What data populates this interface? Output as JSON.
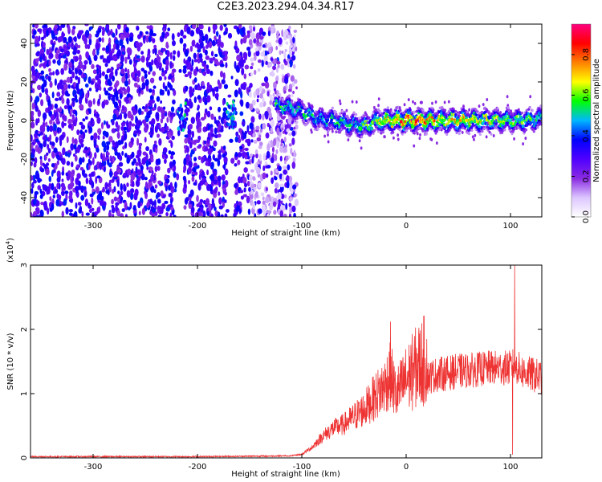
{
  "title": "C2E3.2023.294.04.34.R17",
  "chart_data": [
    {
      "type": "heatmap",
      "xlabel": "Height of straight line (km)",
      "ylabel": "Frequency (Hz)",
      "xlim": [
        -360,
        130
      ],
      "ylim": [
        -50,
        50
      ],
      "xticks": [
        -300,
        -200,
        -100,
        0,
        100
      ],
      "yticks": [
        -40,
        -20,
        0,
        20,
        40
      ],
      "colorbar": {
        "label": "Normalized spectral amplitude",
        "range": [
          0.0,
          0.95
        ],
        "ticks": [
          0.0,
          0.2,
          0.4,
          0.6,
          0.8
        ],
        "tick_labels": [
          "0.0",
          "0.2",
          "0.4",
          "0.6",
          "0.8"
        ],
        "colors": [
          "#ffffff",
          "#dcc6ff",
          "#8a2be2",
          "#5000ff",
          "#0000ff",
          "#00b7ff",
          "#00ff00",
          "#ffff00",
          "#ff8000",
          "#ff0000",
          "#ff0080"
        ]
      },
      "noise_region_height": [
        -360,
        -115
      ],
      "gap_heights": [
        [
          -222,
          -213
        ],
        [
          -172,
          -164
        ]
      ],
      "signal_trace": [
        {
          "x": -125,
          "freq": 8,
          "amp": 0.55
        },
        {
          "x": -100,
          "freq": 5,
          "amp": 0.55
        },
        {
          "x": -85,
          "freq": 1,
          "amp": 0.5
        },
        {
          "x": -70,
          "freq": 0,
          "amp": 0.55
        },
        {
          "x": -55,
          "freq": -2,
          "amp": 0.55
        },
        {
          "x": -40,
          "freq": -3,
          "amp": 0.6
        },
        {
          "x": -25,
          "freq": 0,
          "amp": 0.7
        },
        {
          "x": -10,
          "freq": 0,
          "amp": 0.8
        },
        {
          "x": 0,
          "freq": 0,
          "amp": 0.85
        },
        {
          "x": 20,
          "freq": 0,
          "amp": 0.8
        },
        {
          "x": 45,
          "freq": 0,
          "amp": 0.75
        },
        {
          "x": 70,
          "freq": 0,
          "amp": 0.7
        },
        {
          "x": 95,
          "freq": 0,
          "amp": 0.65
        },
        {
          "x": 115,
          "freq": 0,
          "amp": 0.6
        },
        {
          "x": 130,
          "freq": 1,
          "amp": 0.55
        }
      ]
    },
    {
      "type": "line",
      "xlabel": "Height of straight line (km)",
      "ylabel": "SNR (10 * v/v)",
      "y_scale_label": "(x10",
      "y_scale_exponent": "4",
      "xlim": [
        -360,
        130
      ],
      "ylim": [
        0,
        3
      ],
      "xticks": [
        -300,
        -200,
        -100,
        0,
        100
      ],
      "yticks": [
        0,
        1,
        2,
        3
      ],
      "series": [
        {
          "color": "#ee3333",
          "x": [
            -360,
            -300,
            -200,
            -120,
            -110,
            -100,
            -90,
            -80,
            -70,
            -60,
            -50,
            -40,
            -30,
            -20,
            -15,
            -10,
            0,
            10,
            20,
            30,
            40,
            50,
            60,
            70,
            80,
            90,
            100,
            104,
            110,
            120,
            130
          ],
          "y": [
            0.01,
            0.01,
            0.01,
            0.02,
            0.03,
            0.05,
            0.15,
            0.3,
            0.4,
            0.45,
            0.55,
            0.65,
            0.8,
            0.95,
            1.1,
            0.8,
            1.0,
            1.15,
            1.25,
            1.3,
            1.32,
            1.35,
            1.36,
            1.38,
            1.4,
            1.4,
            1.4,
            1.45,
            1.35,
            1.3,
            1.25
          ]
        }
      ],
      "spikes": [
        {
          "x": -15,
          "y": 2.12
        },
        {
          "x": 104,
          "y": 3.0
        },
        {
          "x": 102,
          "y": 0.05
        }
      ]
    }
  ]
}
